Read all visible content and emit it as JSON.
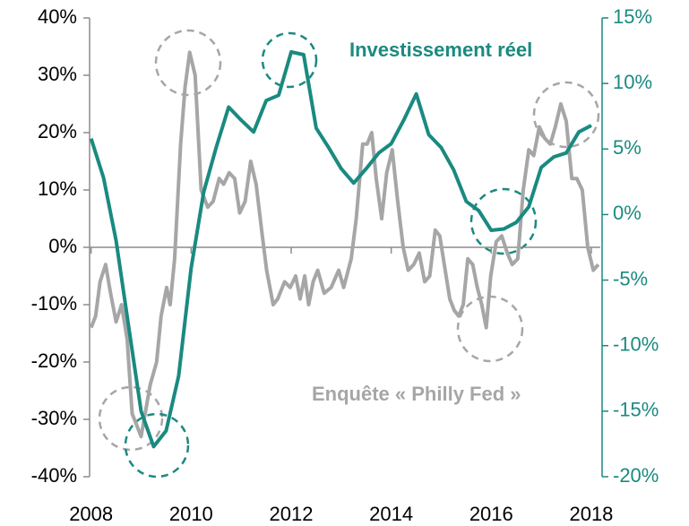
{
  "chart_data": {
    "type": "line",
    "xlim": [
      2007.97,
      2018.18
    ],
    "xticks": [
      2008,
      2010,
      2012,
      2014,
      2016,
      2018
    ],
    "ylim": [
      -40,
      40
    ],
    "yticks": [
      {
        "value": -40,
        "label": "-40%"
      },
      {
        "value": -30,
        "label": "-30%"
      },
      {
        "value": -20,
        "label": "-20%"
      },
      {
        "value": -10,
        "label": "-10%"
      },
      {
        "value": 0,
        "label": "0%"
      },
      {
        "value": 10,
        "label": "10%"
      },
      {
        "value": 20,
        "label": "20%"
      },
      {
        "value": 30,
        "label": "30%"
      },
      {
        "value": 40,
        "label": "40%"
      }
    ],
    "y2lim": [
      -20,
      15
    ],
    "y2ticks": [
      {
        "value": -20,
        "label": "-20%"
      },
      {
        "value": -15,
        "label": "-15%"
      },
      {
        "value": -10,
        "label": "-10%"
      },
      {
        "value": -5,
        "label": "-5%"
      },
      {
        "value": 0,
        "label": "0%"
      },
      {
        "value": 5,
        "label": "5%"
      },
      {
        "value": 10,
        "label": "10%"
      },
      {
        "value": 15,
        "label": "15%"
      }
    ],
    "series": [
      {
        "name": "Enquête « Philly Fed »",
        "color": "#a6a6a6",
        "x": [
          2008.0,
          2008.09,
          2008.18,
          2008.29,
          2008.39,
          2008.5,
          2008.61,
          2008.72,
          2008.82,
          2009.0,
          2009.18,
          2009.31,
          2009.4,
          2009.51,
          2009.58,
          2009.67,
          2009.79,
          2009.88,
          2009.97,
          2010.08,
          2010.2,
          2010.33,
          2010.44,
          2010.56,
          2010.65,
          2010.76,
          2010.87,
          2010.97,
          2011.08,
          2011.19,
          2011.3,
          2011.41,
          2011.51,
          2011.64,
          2011.73,
          2011.87,
          2011.98,
          2012.09,
          2012.18,
          2012.27,
          2012.35,
          2012.44,
          2012.53,
          2012.66,
          2012.8,
          2012.95,
          2013.05,
          2013.2,
          2013.3,
          2013.43,
          2013.52,
          2013.61,
          2013.7,
          2013.81,
          2013.91,
          2014.02,
          2014.13,
          2014.24,
          2014.34,
          2014.45,
          2014.56,
          2014.67,
          2014.77,
          2014.88,
          2014.97,
          2015.08,
          2015.17,
          2015.26,
          2015.35,
          2015.44,
          2015.53,
          2015.63,
          2015.72,
          2015.81,
          2015.9,
          2015.99,
          2016.1,
          2016.21,
          2016.32,
          2016.42,
          2016.53,
          2016.64,
          2016.75,
          2016.85,
          2016.96,
          2017.07,
          2017.18,
          2017.28,
          2017.39,
          2017.5,
          2017.61,
          2017.71,
          2017.82,
          2017.93,
          2018.04,
          2018.14
        ],
        "values": [
          -14,
          -12,
          -6,
          -3,
          -8,
          -13,
          -10,
          -16,
          -29,
          -33,
          -24,
          -20,
          -12,
          -7,
          -10,
          -2,
          18,
          28,
          34,
          30,
          10,
          7,
          8,
          12,
          11,
          13,
          12,
          6,
          8,
          15,
          11,
          3,
          -4,
          -10,
          -9,
          -6,
          -7,
          -5,
          -9,
          -5,
          -10,
          -6,
          -4,
          -8,
          -7,
          -4,
          -7,
          -2,
          5,
          18,
          18,
          20,
          12,
          5,
          13,
          17,
          8,
          0,
          -4,
          -3,
          -1,
          -6,
          -5,
          3,
          2,
          -4,
          -9,
          -11,
          -12,
          -10,
          -2,
          -3,
          -7,
          -10,
          -14,
          -5,
          1,
          2,
          -1,
          -3,
          -2,
          10,
          17,
          16,
          21,
          19,
          18,
          21,
          25,
          22,
          12,
          12,
          10,
          0,
          -4,
          -3
        ]
      },
      {
        "name": "Investissement réel",
        "color": "#1a8a80",
        "axis": "y2",
        "x": [
          2008,
          2008.25,
          2008.5,
          2008.75,
          2009,
          2009.25,
          2009.5,
          2009.75,
          2010,
          2010.25,
          2010.5,
          2010.75,
          2011,
          2011.25,
          2011.5,
          2011.75,
          2012,
          2012.25,
          2012.5,
          2012.75,
          2013,
          2013.25,
          2013.5,
          2013.75,
          2014,
          2014.25,
          2014.5,
          2014.75,
          2015,
          2015.25,
          2015.5,
          2015.75,
          2016,
          2016.25,
          2016.5,
          2016.75,
          2017,
          2017.25,
          2017.5,
          2017.75,
          2018
        ],
        "values": [
          5.8,
          2.8,
          -2.0,
          -8.5,
          -15,
          -17.7,
          -16.5,
          -12.3,
          -4.1,
          1.7,
          5.1,
          8.2,
          7.2,
          6.3,
          8.7,
          9.1,
          12.4,
          12.2,
          6.6,
          5.1,
          3.5,
          2.4,
          3.5,
          4.7,
          5.4,
          7.2,
          9.2,
          6.1,
          5.1,
          3.4,
          1.0,
          0.3,
          -1.2,
          -1.1,
          -0.6,
          0.6,
          3.6,
          4.4,
          4.7,
          6.3,
          6.8
        ]
      }
    ]
  }
}
